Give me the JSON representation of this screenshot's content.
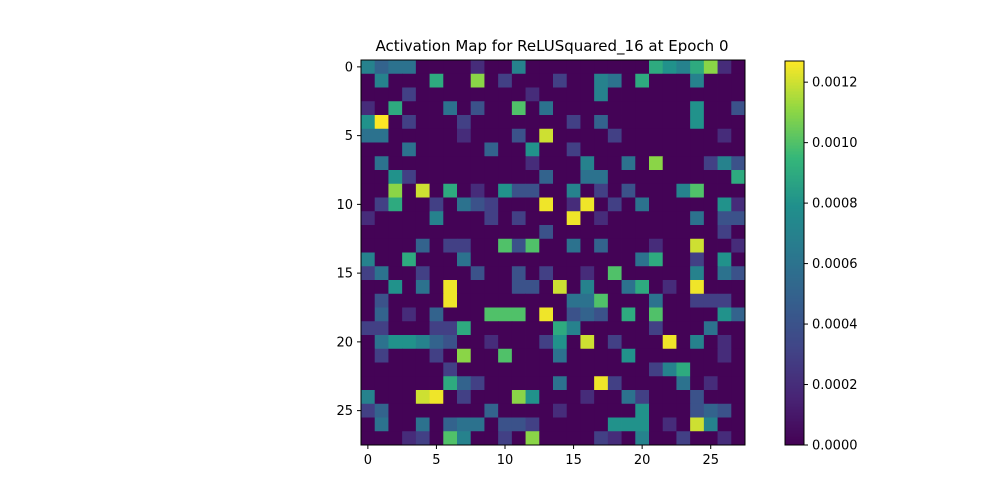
{
  "chart_data": {
    "type": "heatmap",
    "title": "Activation Map for ReLUSquared_16 at Epoch 0",
    "xlabel": "",
    "ylabel": "",
    "x_ticks": [
      0,
      5,
      10,
      15,
      20,
      25
    ],
    "y_ticks": [
      0,
      5,
      10,
      15,
      20,
      25
    ],
    "xlim": [
      -0.5,
      27.5
    ],
    "ylim": [
      27.5,
      -0.5
    ],
    "rows": 28,
    "cols": 28,
    "colormap": "viridis",
    "colorbar": {
      "min": 0.0,
      "max": 0.00127,
      "ticks": [
        0.0,
        0.0002,
        0.0004,
        0.0006,
        0.0008,
        0.001,
        0.0012
      ],
      "tick_labels": [
        "0.0000",
        "0.0002",
        "0.0004",
        "0.0006",
        "0.0008",
        "0.0010",
        "0.0012"
      ]
    },
    "sparse_values": [
      [
        0,
        0,
        0.0007
      ],
      [
        0,
        1,
        0.0005
      ],
      [
        0,
        2,
        0.0006
      ],
      [
        0,
        3,
        0.0006
      ],
      [
        0,
        8,
        0.0002
      ],
      [
        0,
        11,
        0.0007
      ],
      [
        0,
        21,
        0.0009
      ],
      [
        0,
        22,
        0.0008
      ],
      [
        0,
        23,
        0.0007
      ],
      [
        0,
        24,
        0.0009
      ],
      [
        0,
        25,
        0.0011
      ],
      [
        0,
        26,
        0.0002
      ],
      [
        1,
        1,
        0.0007
      ],
      [
        1,
        5,
        0.0009
      ],
      [
        1,
        8,
        0.0011
      ],
      [
        1,
        10,
        0.0003
      ],
      [
        1,
        14,
        0.0003
      ],
      [
        1,
        17,
        0.0007
      ],
      [
        1,
        18,
        0.0006
      ],
      [
        1,
        20,
        0.0009
      ],
      [
        1,
        24,
        0.0007
      ],
      [
        2,
        3,
        0.0003
      ],
      [
        2,
        12,
        0.0002
      ],
      [
        2,
        17,
        0.0007
      ],
      [
        3,
        0,
        0.0002
      ],
      [
        3,
        2,
        0.0009
      ],
      [
        3,
        6,
        0.0006
      ],
      [
        3,
        8,
        0.0004
      ],
      [
        3,
        11,
        0.001
      ],
      [
        3,
        13,
        0.0006
      ],
      [
        3,
        24,
        0.0008
      ],
      [
        3,
        27,
        0.0004
      ],
      [
        4,
        0,
        0.0008
      ],
      [
        4,
        1,
        0.00127
      ],
      [
        4,
        3,
        0.0003
      ],
      [
        4,
        7,
        0.0003
      ],
      [
        4,
        15,
        0.0003
      ],
      [
        4,
        17,
        0.0005
      ],
      [
        4,
        24,
        0.0008
      ],
      [
        5,
        0,
        0.0006
      ],
      [
        5,
        1,
        0.0006
      ],
      [
        5,
        7,
        0.0002
      ],
      [
        5,
        11,
        0.0004
      ],
      [
        5,
        13,
        0.0012
      ],
      [
        5,
        18,
        0.0003
      ],
      [
        5,
        26,
        0.0002
      ],
      [
        6,
        3,
        0.0006
      ],
      [
        6,
        9,
        0.0005
      ],
      [
        6,
        12,
        0.0008
      ],
      [
        6,
        15,
        0.0003
      ],
      [
        7,
        1,
        0.0006
      ],
      [
        7,
        12,
        0.0002
      ],
      [
        7,
        16,
        0.0007
      ],
      [
        7,
        19,
        0.0006
      ],
      [
        7,
        21,
        0.0011
      ],
      [
        7,
        25,
        0.0003
      ],
      [
        7,
        26,
        0.0007
      ],
      [
        7,
        27,
        0.0004
      ],
      [
        8,
        2,
        0.0008
      ],
      [
        8,
        3,
        0.0003
      ],
      [
        8,
        13,
        0.0005
      ],
      [
        8,
        16,
        0.0006
      ],
      [
        8,
        17,
        0.0006
      ],
      [
        8,
        27,
        0.0009
      ],
      [
        9,
        2,
        0.0011
      ],
      [
        9,
        4,
        0.0012
      ],
      [
        9,
        6,
        0.0009
      ],
      [
        9,
        8,
        0.0002
      ],
      [
        9,
        10,
        0.0008
      ],
      [
        9,
        11,
        0.0004
      ],
      [
        9,
        12,
        0.0004
      ],
      [
        9,
        15,
        0.0007
      ],
      [
        9,
        17,
        0.0003
      ],
      [
        9,
        19,
        0.0004
      ],
      [
        9,
        23,
        0.0007
      ],
      [
        9,
        24,
        0.001
      ],
      [
        10,
        1,
        0.0003
      ],
      [
        10,
        2,
        0.0009
      ],
      [
        10,
        5,
        0.0003
      ],
      [
        10,
        7,
        0.0006
      ],
      [
        10,
        8,
        0.0004
      ],
      [
        10,
        9,
        0.0003
      ],
      [
        10,
        13,
        0.00125
      ],
      [
        10,
        15,
        0.0002
      ],
      [
        10,
        16,
        0.00125
      ],
      [
        10,
        18,
        0.0003
      ],
      [
        10,
        20,
        0.0006
      ],
      [
        10,
        26,
        0.0008
      ],
      [
        10,
        27,
        0.0002
      ],
      [
        11,
        0,
        0.0002
      ],
      [
        11,
        5,
        0.0007
      ],
      [
        11,
        9,
        0.0003
      ],
      [
        11,
        11,
        0.0003
      ],
      [
        11,
        15,
        0.00125
      ],
      [
        11,
        17,
        0.0002
      ],
      [
        11,
        24,
        0.0006
      ],
      [
        11,
        26,
        0.0004
      ],
      [
        11,
        27,
        0.0004
      ],
      [
        12,
        13,
        0.0004
      ],
      [
        12,
        26,
        0.0003
      ],
      [
        13,
        4,
        0.0005
      ],
      [
        13,
        6,
        0.0003
      ],
      [
        13,
        7,
        0.0003
      ],
      [
        13,
        10,
        0.001
      ],
      [
        13,
        11,
        0.0004
      ],
      [
        13,
        12,
        0.001
      ],
      [
        13,
        15,
        0.0006
      ],
      [
        13,
        17,
        0.0005
      ],
      [
        13,
        21,
        0.0002
      ],
      [
        13,
        24,
        0.0012
      ],
      [
        13,
        27,
        0.0002
      ],
      [
        14,
        0,
        0.0007
      ],
      [
        14,
        3,
        0.0009
      ],
      [
        14,
        7,
        0.0006
      ],
      [
        14,
        20,
        0.0006
      ],
      [
        14,
        21,
        0.0009
      ],
      [
        14,
        24,
        0.0003
      ],
      [
        14,
        26,
        0.0008
      ],
      [
        15,
        0,
        0.0003
      ],
      [
        15,
        1,
        0.0006
      ],
      [
        15,
        4,
        0.0003
      ],
      [
        15,
        8,
        0.0004
      ],
      [
        15,
        11,
        0.0004
      ],
      [
        15,
        13,
        0.0003
      ],
      [
        15,
        16,
        0.0002
      ],
      [
        15,
        18,
        0.001
      ],
      [
        15,
        24,
        0.0007
      ],
      [
        15,
        26,
        0.0006
      ],
      [
        15,
        27,
        0.0004
      ],
      [
        16,
        2,
        0.0008
      ],
      [
        16,
        4,
        0.0006
      ],
      [
        16,
        6,
        0.00125
      ],
      [
        16,
        11,
        0.0004
      ],
      [
        16,
        12,
        0.0004
      ],
      [
        16,
        14,
        0.0012
      ],
      [
        16,
        16,
        0.0007
      ],
      [
        16,
        19,
        0.0006
      ],
      [
        16,
        20,
        0.0009
      ],
      [
        16,
        22,
        0.0002
      ],
      [
        16,
        24,
        0.00125
      ],
      [
        17,
        1,
        0.0004
      ],
      [
        17,
        6,
        0.00125
      ],
      [
        17,
        15,
        0.0006
      ],
      [
        17,
        16,
        0.0006
      ],
      [
        17,
        17,
        0.001
      ],
      [
        17,
        21,
        0.0006
      ],
      [
        17,
        24,
        0.0003
      ],
      [
        17,
        25,
        0.0003
      ],
      [
        17,
        26,
        0.0003
      ],
      [
        18,
        1,
        0.0005
      ],
      [
        18,
        3,
        0.0002
      ],
      [
        18,
        5,
        0.0005
      ],
      [
        18,
        9,
        0.001
      ],
      [
        18,
        10,
        0.001
      ],
      [
        18,
        11,
        0.001
      ],
      [
        18,
        13,
        0.00125
      ],
      [
        18,
        15,
        0.0004
      ],
      [
        18,
        16,
        0.0005
      ],
      [
        18,
        17,
        0.0004
      ],
      [
        18,
        19,
        0.0009
      ],
      [
        18,
        21,
        0.001
      ],
      [
        18,
        26,
        0.0008
      ],
      [
        18,
        27,
        0.0005
      ],
      [
        19,
        0,
        0.0003
      ],
      [
        19,
        1,
        0.0003
      ],
      [
        19,
        5,
        0.0003
      ],
      [
        19,
        6,
        0.0003
      ],
      [
        19,
        7,
        0.0009
      ],
      [
        19,
        14,
        0.0009
      ],
      [
        19,
        15,
        0.0007
      ],
      [
        19,
        21,
        0.0003
      ],
      [
        19,
        25,
        0.0006
      ],
      [
        20,
        1,
        0.0006
      ],
      [
        20,
        2,
        0.0008
      ],
      [
        20,
        3,
        0.0008
      ],
      [
        20,
        4,
        0.0007
      ],
      [
        20,
        5,
        0.0005
      ],
      [
        20,
        6,
        0.0004
      ],
      [
        20,
        9,
        0.0002
      ],
      [
        20,
        13,
        0.0003
      ],
      [
        20,
        14,
        0.0008
      ],
      [
        20,
        16,
        0.0012
      ],
      [
        20,
        18,
        0.0003
      ],
      [
        20,
        22,
        0.00125
      ],
      [
        20,
        24,
        0.0007
      ],
      [
        20,
        26,
        0.0002
      ],
      [
        21,
        1,
        0.0003
      ],
      [
        21,
        5,
        0.0003
      ],
      [
        21,
        7,
        0.0011
      ],
      [
        21,
        10,
        0.001
      ],
      [
        21,
        14,
        0.0006
      ],
      [
        21,
        19,
        0.0008
      ],
      [
        21,
        26,
        0.0002
      ],
      [
        22,
        6,
        0.0003
      ],
      [
        22,
        21,
        0.0003
      ],
      [
        22,
        22,
        0.0007
      ],
      [
        22,
        23,
        0.0009
      ],
      [
        23,
        6,
        0.0009
      ],
      [
        23,
        7,
        0.0005
      ],
      [
        23,
        8,
        0.0003
      ],
      [
        23,
        14,
        0.0006
      ],
      [
        23,
        17,
        0.00125
      ],
      [
        23,
        18,
        0.0003
      ],
      [
        23,
        23,
        0.0006
      ],
      [
        23,
        25,
        0.0002
      ],
      [
        24,
        0,
        0.0007
      ],
      [
        24,
        4,
        0.0012
      ],
      [
        24,
        5,
        0.00125
      ],
      [
        24,
        7,
        0.0003
      ],
      [
        24,
        11,
        0.0011
      ],
      [
        24,
        12,
        0.0008
      ],
      [
        24,
        16,
        0.0002
      ],
      [
        24,
        19,
        0.0006
      ],
      [
        24,
        20,
        0.0003
      ],
      [
        24,
        24,
        0.0004
      ],
      [
        25,
        0,
        0.0003
      ],
      [
        25,
        1,
        0.0005
      ],
      [
        25,
        9,
        0.0005
      ],
      [
        25,
        14,
        0.0002
      ],
      [
        25,
        20,
        0.0008
      ],
      [
        25,
        24,
        0.0004
      ],
      [
        25,
        25,
        0.0005
      ],
      [
        25,
        26,
        0.0004
      ],
      [
        26,
        1,
        0.0006
      ],
      [
        26,
        4,
        0.0006
      ],
      [
        26,
        6,
        0.0005
      ],
      [
        26,
        7,
        0.0006
      ],
      [
        26,
        8,
        0.0006
      ],
      [
        26,
        10,
        0.0004
      ],
      [
        26,
        11,
        0.0004
      ],
      [
        26,
        12,
        0.0003
      ],
      [
        26,
        18,
        0.0008
      ],
      [
        26,
        19,
        0.0008
      ],
      [
        26,
        20,
        0.0008
      ],
      [
        26,
        22,
        0.0002
      ],
      [
        26,
        24,
        0.0012
      ],
      [
        26,
        25,
        0.0007
      ],
      [
        27,
        3,
        0.0002
      ],
      [
        27,
        4,
        0.0003
      ],
      [
        27,
        6,
        0.001
      ],
      [
        27,
        7,
        0.0007
      ],
      [
        27,
        10,
        0.0003
      ],
      [
        27,
        12,
        0.0011
      ],
      [
        27,
        17,
        0.0003
      ],
      [
        27,
        18,
        0.0002
      ],
      [
        27,
        20,
        0.0007
      ],
      [
        27,
        23,
        0.0003
      ],
      [
        27,
        26,
        0.0002
      ]
    ],
    "background_level": 1e-05
  }
}
